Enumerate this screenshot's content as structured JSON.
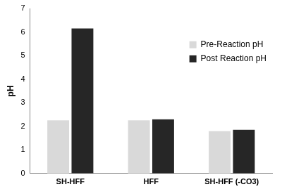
{
  "chart_data": {
    "type": "bar",
    "y_label": "pH",
    "categories": [
      "SH-HFF",
      "HFF",
      "SH-HFF (-CO3)"
    ],
    "series": [
      {
        "name": "Pre-Reaction pH",
        "color": "#d9d9d9",
        "values": [
          2.25,
          2.25,
          1.8
        ]
      },
      {
        "name": "Post Reaction pH",
        "color": "#262626",
        "values": [
          6.15,
          2.3,
          1.85
        ]
      }
    ],
    "ylim": [
      0,
      7
    ],
    "yticks": [
      0,
      1,
      2,
      3,
      4,
      5,
      6,
      7
    ],
    "grid": false,
    "legend": "upper right"
  }
}
